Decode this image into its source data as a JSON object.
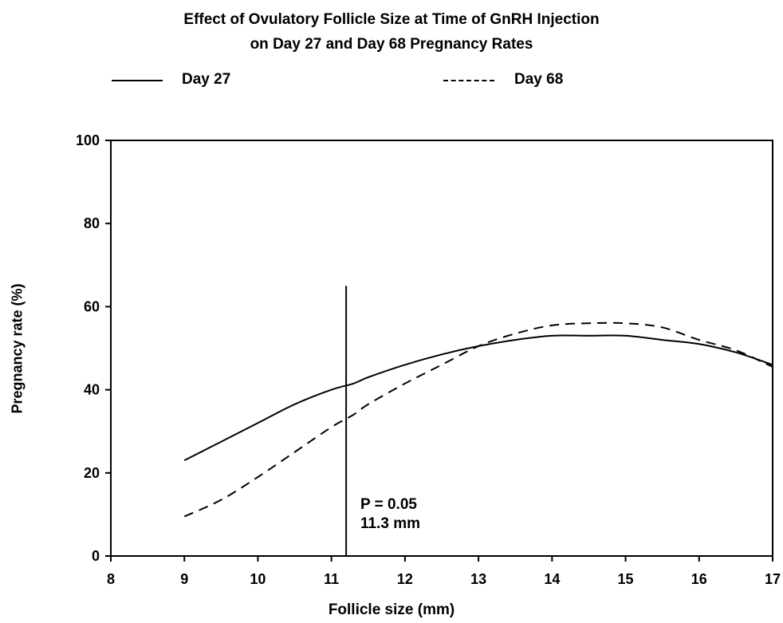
{
  "chart_data": {
    "type": "line",
    "title": "Effect of Ovulatory Follicle Size at Time of GnRH Injection",
    "subtitle": "on Day 27 and Day 68 Pregnancy Rates",
    "xlabel": "Follicle size (mm)",
    "ylabel": "Pregnancy rate (%)",
    "xlim": [
      8,
      17
    ],
    "ylim": [
      0,
      100
    ],
    "xticks": [
      "8",
      "9",
      "10",
      "11",
      "12",
      "13",
      "14",
      "15",
      "16",
      "17"
    ],
    "yticks": [
      "0",
      "20",
      "40",
      "60",
      "80",
      "100"
    ],
    "grid": false,
    "legend_position": "top",
    "series": [
      {
        "name": "Day 27",
        "style": "solid",
        "color": "#000000",
        "x": [
          9,
          9.5,
          10,
          10.5,
          11,
          11.3,
          11.5,
          12,
          12.5,
          13,
          13.5,
          14,
          14.5,
          15,
          15.5,
          16,
          16.5,
          17
        ],
        "y": [
          23,
          27.5,
          32,
          36.5,
          40,
          41.5,
          43,
          46,
          48.5,
          50.5,
          52,
          53,
          53,
          53,
          52,
          51,
          49,
          46
        ]
      },
      {
        "name": "Day 68",
        "style": "dashed",
        "color": "#000000",
        "x": [
          9,
          9.5,
          10,
          10.5,
          11,
          11.3,
          11.5,
          12,
          12.5,
          13,
          13.5,
          14,
          14.5,
          15,
          15.5,
          16,
          16.5,
          17
        ],
        "y": [
          9.5,
          13.5,
          19,
          25,
          31,
          34,
          36.5,
          41.5,
          46,
          50.5,
          53.5,
          55.5,
          56,
          56,
          55,
          52,
          49.5,
          45.5
        ]
      }
    ],
    "vertical_line": {
      "x": 11.2,
      "y_top": 65
    },
    "annotations": [
      "P = 0.05",
      "11.3 mm"
    ]
  }
}
